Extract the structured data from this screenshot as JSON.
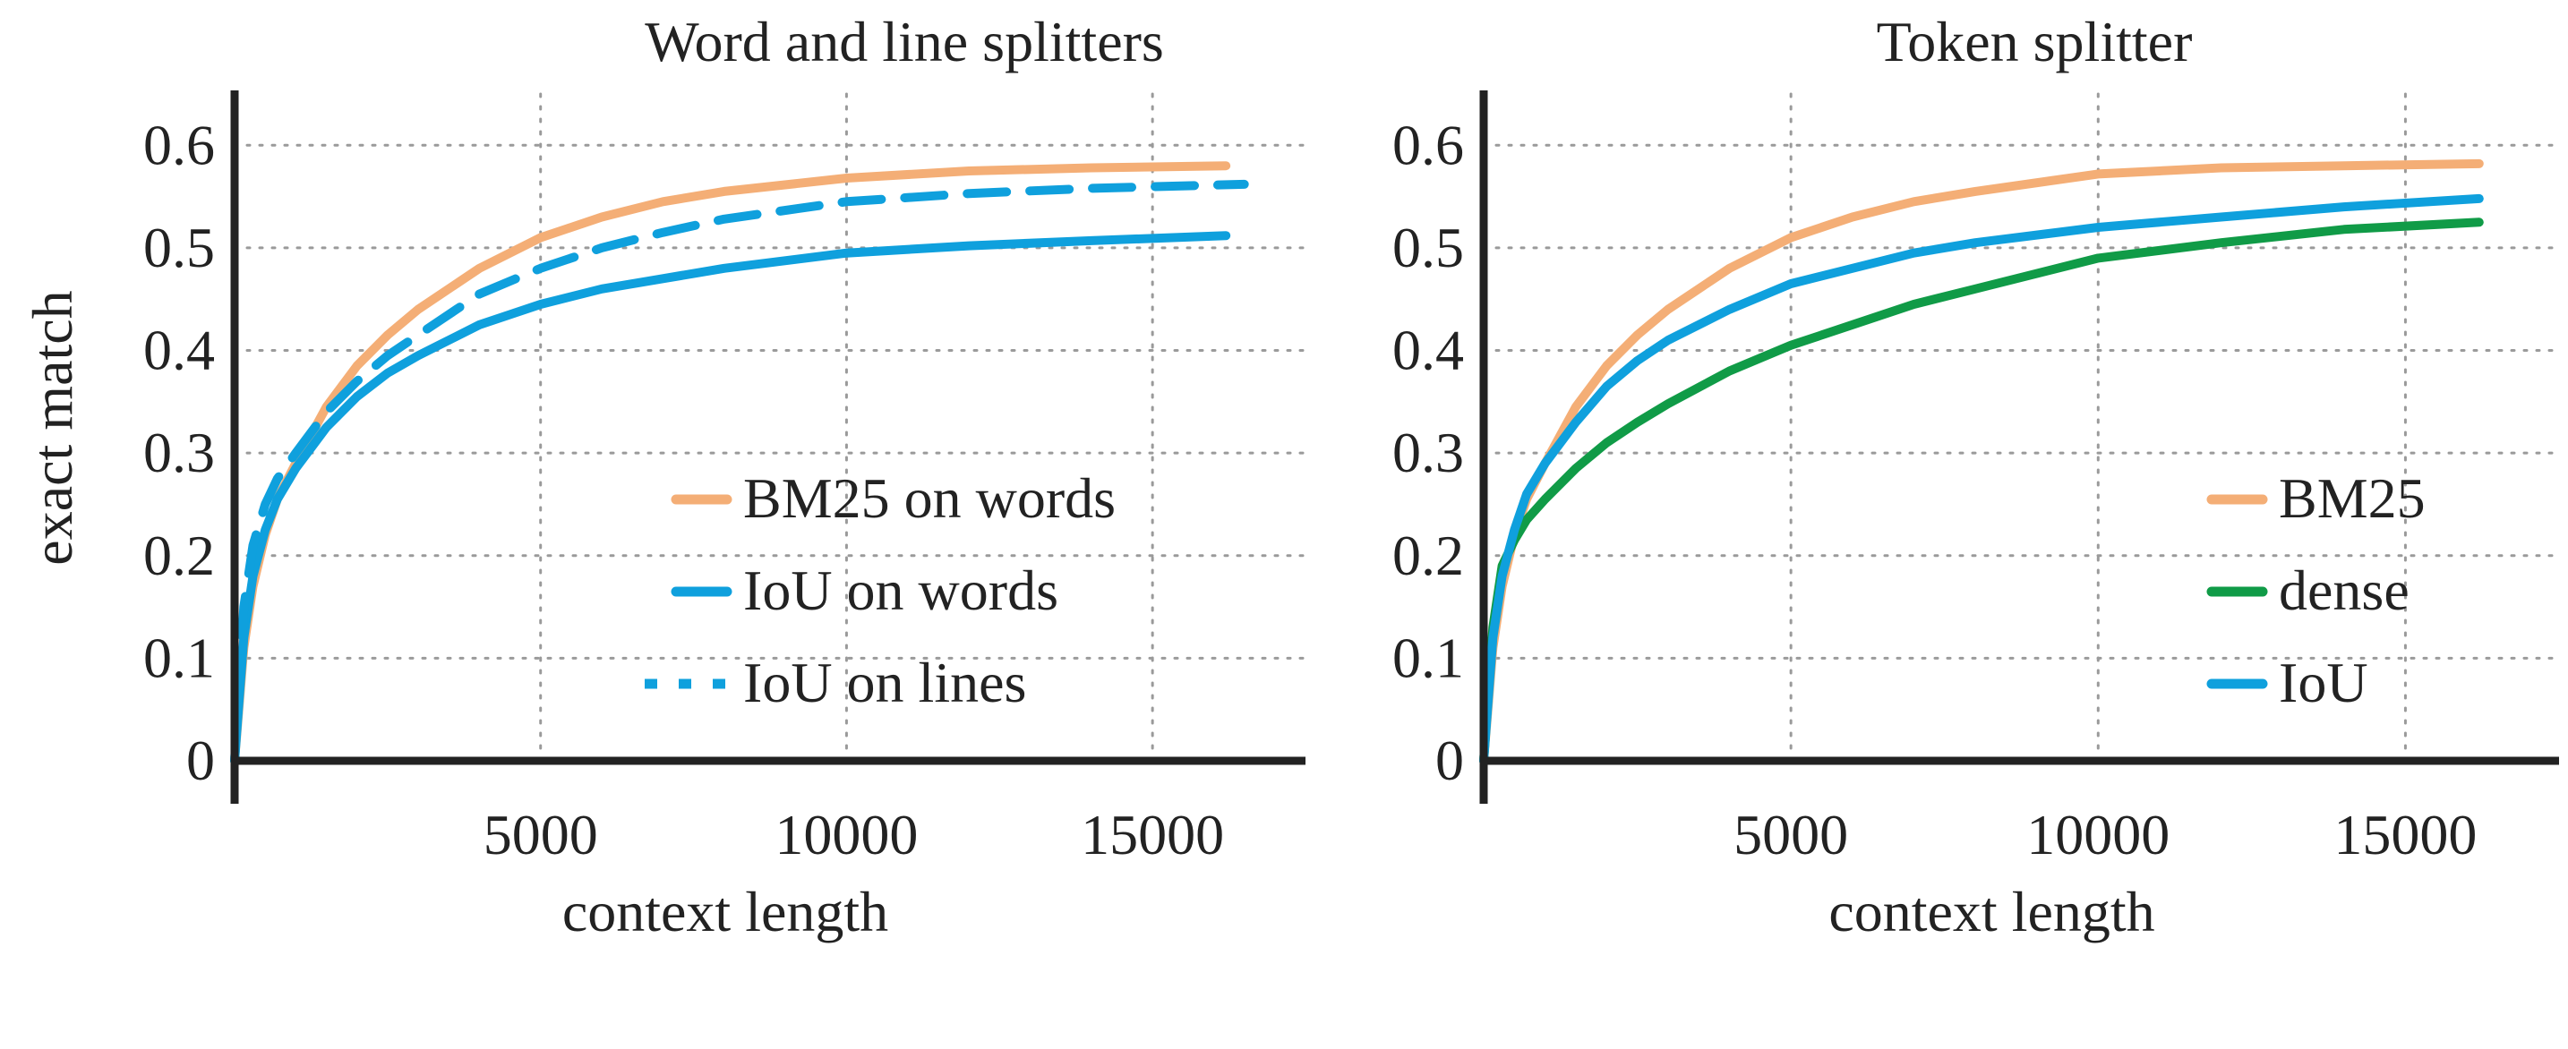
{
  "colors": {
    "orange": "#F4AE76",
    "blue": "#0FA0DD",
    "green": "#109B47",
    "axis": "#222222",
    "grid": "#9A9A9A"
  },
  "chart_data": [
    {
      "type": "line",
      "title": "Word and line splitters",
      "xlabel": "context length",
      "ylabel": "exact match",
      "xlim": [
        0,
        17500
      ],
      "ylim": [
        0,
        0.65
      ],
      "xticks": [
        5000,
        10000,
        15000
      ],
      "xtick_labels": [
        "5000",
        "10000",
        "15000"
      ],
      "yticks": [
        0,
        0.1,
        0.2,
        0.3,
        0.4,
        0.5,
        0.6
      ],
      "ytick_labels": [
        "0",
        "0.1",
        "0.2",
        "0.3",
        "0.4",
        "0.5",
        "0.6"
      ],
      "grid": true,
      "legend_position": "bottom-right",
      "series": [
        {
          "name": "BM25 on words",
          "color": "#F4AE76",
          "dash": "solid",
          "x": [
            0,
            150,
            300,
            500,
            700,
            1000,
            1500,
            2000,
            2500,
            3000,
            4000,
            5000,
            6000,
            7000,
            8000,
            10000,
            12000,
            14000,
            16200
          ],
          "y": [
            0,
            0.11,
            0.17,
            0.22,
            0.255,
            0.29,
            0.345,
            0.385,
            0.415,
            0.44,
            0.48,
            0.51,
            0.53,
            0.545,
            0.555,
            0.568,
            0.575,
            0.578,
            0.58
          ]
        },
        {
          "name": "IoU on words",
          "color": "#0FA0DD",
          "dash": "solid",
          "x": [
            0,
            150,
            300,
            500,
            700,
            1000,
            1500,
            2000,
            2500,
            3000,
            4000,
            5000,
            6000,
            7000,
            8000,
            10000,
            12000,
            14000,
            16200
          ],
          "y": [
            0,
            0.12,
            0.18,
            0.225,
            0.255,
            0.285,
            0.325,
            0.355,
            0.378,
            0.395,
            0.425,
            0.445,
            0.46,
            0.47,
            0.48,
            0.495,
            0.502,
            0.507,
            0.512
          ]
        },
        {
          "name": "IoU on lines",
          "color": "#0FA0DD",
          "dash": "dashed",
          "x": [
            0,
            150,
            300,
            500,
            700,
            1000,
            1500,
            2000,
            2500,
            3000,
            4000,
            5000,
            6000,
            7000,
            8000,
            10000,
            12000,
            14000,
            16500
          ],
          "y": [
            0,
            0.15,
            0.21,
            0.25,
            0.275,
            0.3,
            0.34,
            0.37,
            0.395,
            0.415,
            0.455,
            0.48,
            0.5,
            0.515,
            0.528,
            0.545,
            0.553,
            0.558,
            0.562
          ]
        }
      ]
    },
    {
      "type": "line",
      "title": "Token splitter",
      "xlabel": "context length",
      "ylabel": "",
      "xlim": [
        0,
        17500
      ],
      "ylim": [
        0,
        0.65
      ],
      "xticks": [
        5000,
        10000,
        15000
      ],
      "xtick_labels": [
        "5000",
        "10000",
        "15000"
      ],
      "yticks": [
        0,
        0.1,
        0.2,
        0.3,
        0.4,
        0.5,
        0.6
      ],
      "ytick_labels": [
        "0",
        "0.1",
        "0.2",
        "0.3",
        "0.4",
        "0.5",
        "0.6"
      ],
      "grid": true,
      "legend_position": "bottom-right",
      "series": [
        {
          "name": "BM25",
          "color": "#F4AE76",
          "dash": "solid",
          "x": [
            0,
            150,
            300,
            500,
            700,
            1000,
            1500,
            2000,
            2500,
            3000,
            4000,
            5000,
            6000,
            7000,
            8000,
            10000,
            12000,
            14000,
            16200
          ],
          "y": [
            0,
            0.11,
            0.17,
            0.22,
            0.255,
            0.29,
            0.345,
            0.385,
            0.415,
            0.44,
            0.48,
            0.51,
            0.53,
            0.545,
            0.555,
            0.572,
            0.578,
            0.58,
            0.582
          ]
        },
        {
          "name": "dense",
          "color": "#109B47",
          "dash": "solid",
          "x": [
            0,
            150,
            300,
            500,
            700,
            1000,
            1500,
            2000,
            2500,
            3000,
            4000,
            5000,
            6000,
            7000,
            8000,
            10000,
            12000,
            14000,
            16200
          ],
          "y": [
            0,
            0.13,
            0.19,
            0.215,
            0.235,
            0.255,
            0.285,
            0.31,
            0.33,
            0.348,
            0.38,
            0.405,
            0.425,
            0.445,
            0.46,
            0.49,
            0.505,
            0.518,
            0.525
          ]
        },
        {
          "name": "IoU",
          "color": "#0FA0DD",
          "dash": "solid",
          "x": [
            0,
            150,
            300,
            500,
            700,
            1000,
            1500,
            2000,
            2500,
            3000,
            4000,
            5000,
            6000,
            7000,
            8000,
            10000,
            12000,
            14000,
            16200
          ],
          "y": [
            0,
            0.12,
            0.18,
            0.225,
            0.26,
            0.29,
            0.33,
            0.365,
            0.39,
            0.41,
            0.44,
            0.465,
            0.48,
            0.495,
            0.505,
            0.52,
            0.53,
            0.54,
            0.548
          ]
        }
      ]
    }
  ]
}
